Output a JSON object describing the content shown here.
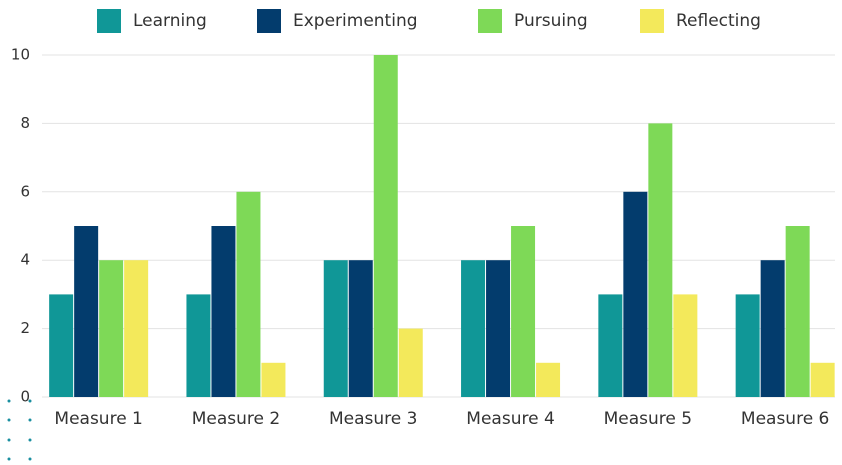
{
  "chart_data": {
    "type": "bar",
    "categories": [
      "Measure 1",
      "Measure 2",
      "Measure 3",
      "Measure 4",
      "Measure 5",
      "Measure 6"
    ],
    "series": [
      {
        "name": "Learning",
        "color": "#109797",
        "values": [
          3,
          3,
          4,
          4,
          3,
          3
        ]
      },
      {
        "name": "Experimenting",
        "color": "#033c6d",
        "values": [
          5,
          5,
          4,
          4,
          6,
          4
        ]
      },
      {
        "name": "Pursuing",
        "color": "#7ed957",
        "values": [
          4,
          6,
          10,
          5,
          8,
          5
        ]
      },
      {
        "name": "Reflecting",
        "color": "#f3e95b",
        "values": [
          4,
          1,
          2,
          1,
          3,
          1
        ]
      }
    ],
    "ylim": [
      0,
      10
    ],
    "yticks": [
      0,
      2,
      4,
      6,
      8,
      10
    ],
    "grid": true,
    "legend": "top"
  }
}
